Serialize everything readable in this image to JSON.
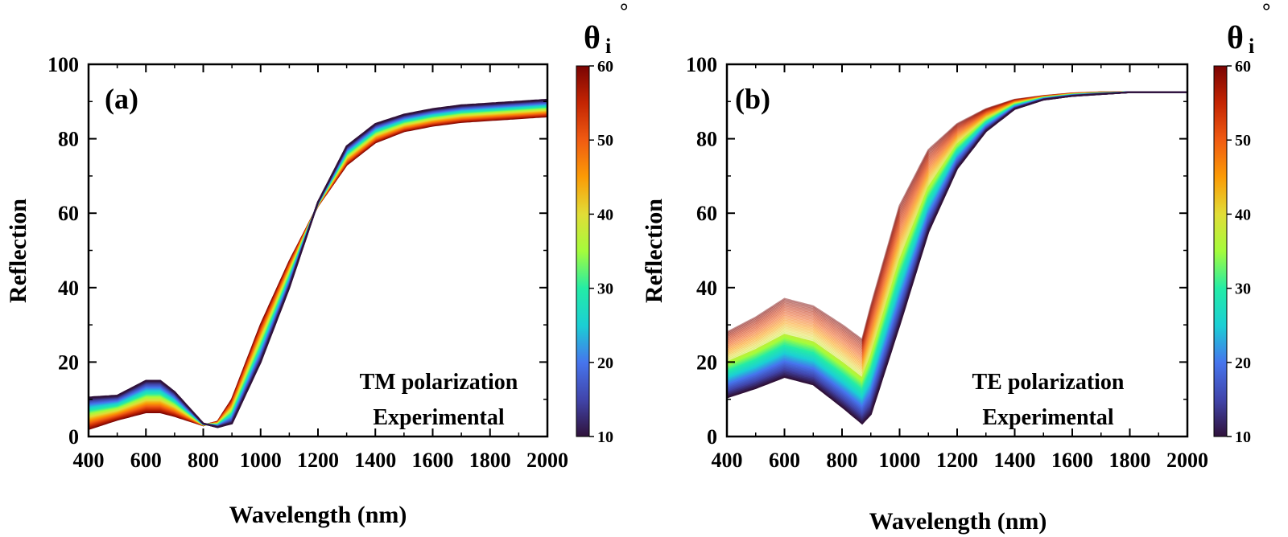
{
  "chart_data": [
    {
      "type": "line",
      "panel_label": "(a)",
      "xlabel": "Wavelength (nm)",
      "ylabel": "Reflection",
      "xlim": [
        400,
        2000
      ],
      "ylim": [
        0,
        100
      ],
      "xticks": [
        400,
        600,
        800,
        1000,
        1200,
        1400,
        1600,
        1800,
        2000
      ],
      "yticks": [
        0,
        20,
        40,
        60,
        80,
        100
      ],
      "annotation": [
        "TM polarization",
        "Experimental"
      ],
      "colorbar": {
        "label": "θ",
        "subscript": "i",
        "unit": "°",
        "min": 10,
        "max": 60,
        "ticks": [
          10,
          20,
          30,
          40,
          50,
          60
        ],
        "colormap": "turbo"
      },
      "series_count": 51,
      "series": [
        {
          "angle": 10,
          "x": [
            400,
            500,
            600,
            650,
            700,
            800,
            850,
            900,
            1000,
            1100,
            1200,
            1300,
            1400,
            1500,
            1600,
            1700,
            1800,
            1900,
            2000
          ],
          "y": [
            10.5,
            11,
            15,
            15,
            12,
            3.5,
            2.5,
            3.5,
            20,
            40,
            63,
            78,
            84,
            86.5,
            88,
            89,
            89.5,
            90,
            90.5
          ]
        },
        {
          "angle": 60,
          "x": [
            400,
            500,
            600,
            650,
            700,
            800,
            850,
            900,
            1000,
            1100,
            1200,
            1300,
            1400,
            1500,
            1600,
            1700,
            1800,
            1900,
            2000
          ],
          "y": [
            2,
            4.5,
            6.5,
            6.5,
            5.5,
            3,
            4,
            10,
            30,
            47,
            62,
            73,
            79,
            82,
            83.5,
            84.5,
            85,
            85.5,
            86
          ]
        }
      ]
    },
    {
      "type": "line",
      "panel_label": "(b)",
      "xlabel": "Wavelength (nm)",
      "ylabel": "Reflection",
      "xlim": [
        400,
        2000
      ],
      "ylim": [
        0,
        100
      ],
      "xticks": [
        400,
        600,
        800,
        1000,
        1200,
        1400,
        1600,
        1800,
        2000
      ],
      "yticks": [
        0,
        20,
        40,
        60,
        80,
        100
      ],
      "annotation": [
        "TE polarization",
        "Experimental"
      ],
      "colorbar": {
        "label": "θ",
        "subscript": "i",
        "unit": "°",
        "min": 10,
        "max": 60,
        "ticks": [
          10,
          20,
          30,
          40,
          50,
          60
        ],
        "colormap": "turbo"
      },
      "series_count": 51,
      "series": [
        {
          "angle": 10,
          "x": [
            400,
            500,
            600,
            700,
            800,
            870,
            900,
            1000,
            1100,
            1200,
            1300,
            1400,
            1500,
            1600,
            1700,
            1800,
            1900,
            2000
          ],
          "y": [
            10.5,
            13,
            16,
            14,
            8,
            3.5,
            6,
            30,
            55,
            72,
            82,
            88,
            90.5,
            91.5,
            92,
            92.5,
            92.5,
            92.5
          ]
        },
        {
          "angle": 60,
          "x": [
            400,
            500,
            600,
            700,
            800,
            870,
            900,
            1000,
            1100,
            1200,
            1300,
            1400,
            1500,
            1600,
            1700,
            1800,
            1900,
            2000
          ],
          "y": [
            28,
            32,
            37,
            35,
            30,
            26,
            35,
            62,
            77,
            84,
            88,
            90.5,
            91.5,
            92.2,
            92.5,
            92.5,
            92.5,
            92.5
          ]
        }
      ]
    }
  ]
}
